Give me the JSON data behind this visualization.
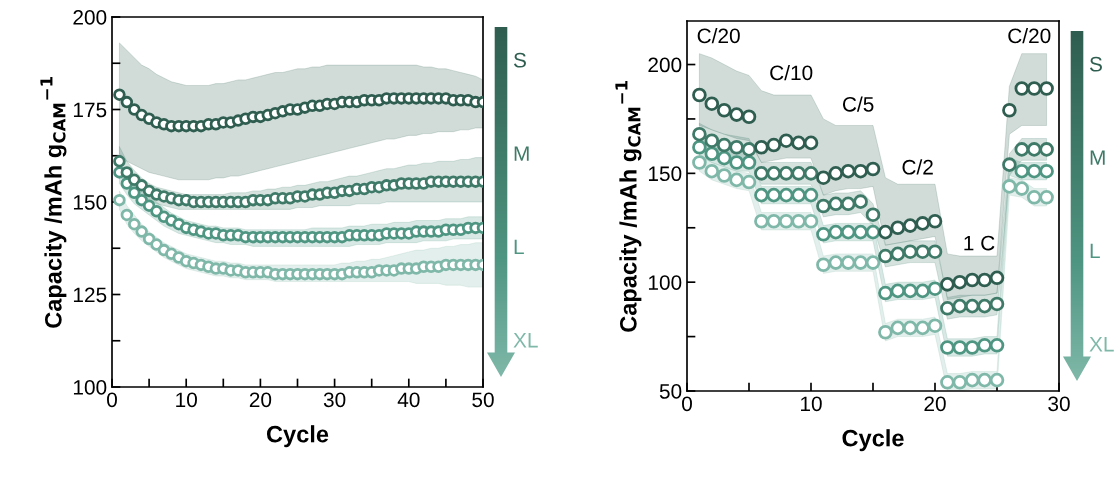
{
  "chart_data": [
    {
      "type": "scatter",
      "xlabel": "Cycle",
      "ylabel": "Capacity /mAh g$_{CAM}$$^{−1}$",
      "marker": "circle",
      "legend": "right",
      "grid": false,
      "x": [
        1,
        2,
        3,
        4,
        5,
        6,
        7,
        8,
        9,
        10,
        11,
        12,
        13,
        14,
        15,
        16,
        17,
        18,
        19,
        20,
        21,
        22,
        23,
        24,
        25,
        26,
        27,
        28,
        29,
        30,
        31,
        32,
        33,
        34,
        35,
        36,
        37,
        38,
        39,
        40,
        41,
        42,
        43,
        44,
        45,
        46,
        47,
        48,
        49,
        50
      ],
      "xlim": [
        0,
        50
      ],
      "xticks": [
        0,
        {
          "value": 5,
          "label": null
        },
        10,
        {
          "value": 15,
          "label": null
        },
        20,
        {
          "value": 25,
          "label": null
        },
        30,
        {
          "value": 35,
          "label": null
        },
        40,
        {
          "value": 45,
          "label": null
        },
        50
      ],
      "ylim": [
        100,
        200
      ],
      "yticks": [
        100,
        {
          "value": 112.5,
          "label": null
        },
        125,
        {
          "value": 137.5,
          "label": null
        },
        150,
        {
          "value": 162.5,
          "label": null
        },
        175,
        {
          "value": 187.5,
          "label": null
        },
        200
      ],
      "series": [
        {
          "name": "S",
          "color": "#2f5e50",
          "values": [
            179,
            177,
            175,
            173.5,
            172.5,
            171.5,
            171,
            170.5,
            170.5,
            170.5,
            170.5,
            170.5,
            171,
            171,
            171.5,
            171.5,
            172,
            172.5,
            173,
            173,
            173.5,
            174,
            174.5,
            175,
            175,
            175.5,
            176,
            176,
            176.5,
            176.5,
            177,
            177,
            177,
            177.5,
            177.5,
            177.5,
            178,
            178,
            178,
            178,
            178,
            178,
            178,
            178,
            178,
            177.5,
            177.5,
            177.5,
            177,
            177
          ],
          "upper": [
            193,
            191,
            189,
            187,
            186,
            184.5,
            183.5,
            182.5,
            182,
            181.5,
            181.5,
            181.5,
            181.5,
            182,
            182,
            182.5,
            183,
            183,
            183.5,
            184,
            184.5,
            185,
            185,
            185.5,
            186,
            186,
            186.5,
            186.5,
            187,
            187,
            187,
            187,
            187,
            187,
            187,
            187,
            187,
            187,
            187,
            187,
            187,
            186.5,
            186.5,
            186,
            186,
            185.5,
            185,
            184.5,
            184,
            183
          ],
          "lower": [
            163,
            161,
            160,
            159,
            158,
            157.5,
            157,
            156.5,
            156,
            156,
            156,
            156,
            156,
            156.5,
            156.5,
            157,
            157,
            157.5,
            158,
            158.5,
            159,
            159.5,
            160,
            160.5,
            161,
            161.5,
            162,
            162.5,
            163,
            163.5,
            164,
            164.5,
            165,
            165.5,
            166,
            166.5,
            167,
            167,
            167.5,
            168,
            168,
            168.5,
            168.5,
            169,
            169,
            169,
            169.5,
            169.5,
            170,
            170
          ]
        },
        {
          "name": "M",
          "color": "#3f7a68",
          "values": [
            161,
            158,
            156,
            154.5,
            153,
            152,
            151.5,
            151,
            150.5,
            150.5,
            150,
            150,
            150,
            150,
            150,
            150,
            150,
            150,
            150.5,
            150.5,
            150.5,
            151,
            151,
            151,
            151.5,
            151.5,
            152,
            152,
            152.5,
            152.5,
            153,
            153,
            153.5,
            153.5,
            154,
            154,
            154.5,
            154.5,
            155,
            155,
            155,
            155,
            155.5,
            155.5,
            155.5,
            155.5,
            155.5,
            155.5,
            155.5,
            155.5
          ],
          "upper": [
            165,
            161,
            158.5,
            156.5,
            155,
            154,
            153.5,
            153,
            152.5,
            152,
            152,
            152,
            152,
            152,
            152,
            152.5,
            152.5,
            152.5,
            153,
            153,
            153.5,
            153.5,
            154,
            154,
            154.5,
            154.5,
            155,
            155.5,
            155.5,
            156,
            156.5,
            157,
            157,
            157.5,
            158,
            158.5,
            159,
            159,
            159.5,
            160,
            160,
            160.5,
            160.5,
            161,
            161,
            161,
            161.5,
            161.5,
            162,
            162
          ],
          "lower": [
            157,
            155,
            153.5,
            152,
            150.5,
            149.5,
            149,
            148.5,
            148,
            148,
            148,
            148,
            148,
            148,
            148,
            148,
            148,
            148,
            148,
            148,
            148,
            148,
            148,
            148,
            148.5,
            148.5,
            148.5,
            149,
            149,
            149,
            149,
            149,
            149.5,
            149.5,
            149.5,
            149.5,
            150,
            150,
            150,
            150,
            150,
            150,
            150,
            150,
            150,
            150,
            150,
            150,
            150,
            150
          ]
        },
        {
          "name": "L",
          "color": "#4f9682",
          "values": [
            158,
            155,
            152.5,
            150.5,
            149,
            147.5,
            146,
            145,
            144,
            143,
            142.5,
            142,
            141.5,
            141.5,
            141,
            141,
            141,
            140.5,
            140.5,
            140.5,
            140.5,
            140.5,
            140.5,
            140.5,
            140.5,
            140.5,
            140.5,
            140.5,
            140.5,
            140.5,
            140.5,
            141,
            141,
            141,
            141,
            141,
            141.5,
            141.5,
            141.5,
            141.5,
            142,
            142,
            142,
            142,
            142.5,
            142.5,
            142.5,
            143,
            143,
            143
          ],
          "upper": [
            161,
            158,
            155.5,
            153,
            151.5,
            150,
            148.5,
            147,
            146,
            145,
            144.5,
            144,
            143.5,
            143.5,
            143,
            143,
            143,
            142.5,
            142.5,
            142.5,
            142.5,
            142.5,
            142.5,
            142.5,
            142.5,
            142.5,
            143,
            143,
            143,
            143,
            143,
            143.5,
            143.5,
            143.5,
            144,
            144,
            144,
            144.5,
            144.5,
            144.5,
            145,
            145,
            145,
            145,
            145.5,
            145.5,
            145.5,
            146,
            146,
            146
          ],
          "lower": [
            155,
            152,
            149.5,
            148,
            146.5,
            145,
            143.5,
            142.5,
            141.5,
            141,
            140.5,
            140,
            139.5,
            139,
            139,
            138.5,
            138.5,
            138.5,
            138,
            138,
            138,
            138,
            138,
            138,
            138,
            138,
            138,
            138,
            138,
            138,
            138,
            138,
            138.5,
            138.5,
            138.5,
            138.5,
            139,
            139,
            139,
            139,
            139,
            139.5,
            139.5,
            139.5,
            139.5,
            140,
            140,
            140,
            140,
            140
          ]
        },
        {
          "name": "XL",
          "color": "#7fb8a8",
          "values": [
            150.5,
            146.5,
            144,
            142,
            140,
            138.5,
            137,
            136,
            135,
            134,
            133.5,
            133,
            132.5,
            132,
            132,
            131.5,
            131.5,
            131,
            131,
            131,
            131,
            130.5,
            130.5,
            130.5,
            130.5,
            130.5,
            130.5,
            130.5,
            130.5,
            130.5,
            130.5,
            131,
            131,
            131,
            131,
            131.5,
            131.5,
            131.5,
            132,
            132,
            132,
            132.5,
            132.5,
            132.5,
            133,
            133,
            133,
            133,
            133,
            133
          ],
          "upper": [
            153,
            149,
            146.5,
            144,
            142,
            140.5,
            139,
            138,
            137,
            136,
            135.5,
            135,
            134.5,
            134,
            134,
            133.5,
            133.5,
            133,
            133,
            133,
            133,
            133,
            133,
            133,
            133,
            133,
            133,
            133,
            133,
            133,
            133.5,
            133.5,
            134,
            134,
            134.5,
            134.5,
            135,
            135.5,
            136,
            136.5,
            137,
            137,
            137.5,
            137.5,
            138,
            138,
            138.5,
            138.5,
            139,
            139
          ],
          "lower": [
            148,
            144,
            141.5,
            139.5,
            138,
            136.5,
            135,
            134,
            133,
            132,
            131.5,
            131,
            130.5,
            130,
            130,
            129.5,
            129.5,
            129,
            129,
            129,
            129,
            128.5,
            128.5,
            128.5,
            128.5,
            128.5,
            128.5,
            128.5,
            128.5,
            128.5,
            128.5,
            128.5,
            128.5,
            128.5,
            128.5,
            128.5,
            128.5,
            128.5,
            128.5,
            128.5,
            128,
            128,
            128,
            128,
            127.5,
            127.5,
            127.5,
            127,
            127,
            127
          ]
        }
      ]
    },
    {
      "type": "scatter",
      "xlabel": "Cycle",
      "ylabel": "Capacity /mAh g$_{CAM}$$^{−1}$",
      "marker": "circle",
      "legend": "right",
      "grid": false,
      "x": [
        1,
        2,
        3,
        4,
        5,
        6,
        7,
        8,
        9,
        10,
        11,
        12,
        13,
        14,
        15,
        16,
        17,
        18,
        19,
        20,
        21,
        22,
        23,
        24,
        25,
        26,
        27,
        28,
        29
      ],
      "xlim": [
        0,
        30
      ],
      "xticks": [
        0,
        {
          "value": 5,
          "label": null
        },
        10,
        {
          "value": 15,
          "label": null
        },
        20,
        {
          "value": 25,
          "label": null
        },
        30
      ],
      "ylim": [
        50,
        220
      ],
      "yticks": [
        50,
        {
          "value": 75,
          "label": null
        },
        100,
        {
          "value": 125,
          "label": null
        },
        150,
        {
          "value": 175,
          "label": null
        },
        200
      ],
      "annotations": [
        "C/20",
        "C/10",
        "C/5",
        "C/2",
        "1 C",
        "C/20"
      ],
      "series": [
        {
          "name": "S",
          "color": "#2f5e50",
          "values": [
            186,
            182,
            179,
            177,
            176,
            162,
            163,
            165,
            164,
            164,
            148,
            150,
            151,
            151,
            152,
            123,
            125,
            126,
            127,
            128,
            99,
            100,
            101,
            101,
            102,
            179,
            189,
            189,
            189
          ],
          "upper": [
            205,
            203,
            200,
            197,
            195,
            188,
            186,
            186,
            186,
            186,
            175,
            172,
            172,
            172,
            172,
            148,
            145,
            145,
            145,
            145,
            113,
            112,
            112,
            112,
            112,
            190,
            205,
            205,
            205
          ],
          "lower": [
            172,
            170,
            168,
            166,
            165,
            155,
            156,
            157,
            157,
            157,
            140,
            142,
            143,
            143,
            144,
            117,
            118,
            119,
            120,
            121,
            92,
            93,
            94,
            94,
            95,
            168,
            172,
            172,
            172
          ]
        },
        {
          "name": "M",
          "color": "#3f7a68",
          "values": [
            168,
            165,
            163,
            162,
            161,
            150,
            150,
            150,
            150,
            150,
            135,
            136,
            136,
            137,
            131,
            112,
            113,
            114,
            114,
            114,
            88,
            89,
            89,
            89,
            90,
            154,
            161,
            161,
            161
          ],
          "upper": [
            173,
            170,
            168,
            167,
            166,
            155,
            155,
            155,
            155,
            155,
            140,
            141,
            141,
            142,
            136,
            117,
            118,
            119,
            119,
            119,
            93,
            94,
            94,
            94,
            95,
            159,
            166,
            166,
            166
          ],
          "lower": [
            163,
            160,
            158,
            157,
            156,
            145,
            145,
            145,
            145,
            145,
            130,
            131,
            131,
            132,
            126,
            107,
            108,
            109,
            109,
            109,
            83,
            84,
            84,
            84,
            85,
            149,
            156,
            156,
            156
          ]
        },
        {
          "name": "L",
          "color": "#4f9682",
          "values": [
            162,
            159,
            157,
            155,
            155,
            140,
            140,
            140,
            140,
            140,
            122,
            123,
            123,
            123,
            123,
            95,
            96,
            96,
            96,
            97,
            70,
            70,
            70,
            71,
            71,
            null,
            151,
            151,
            151
          ],
          "upper": [
            166,
            163,
            161,
            159,
            159,
            144,
            144,
            144,
            144,
            144,
            126,
            127,
            127,
            127,
            127,
            99,
            100,
            100,
            100,
            101,
            74,
            74,
            74,
            75,
            75,
            157,
            155,
            155,
            155
          ],
          "lower": [
            158,
            155,
            153,
            151,
            151,
            136,
            136,
            136,
            136,
            136,
            118,
            119,
            119,
            119,
            119,
            91,
            92,
            92,
            92,
            93,
            66,
            66,
            66,
            67,
            67,
            149,
            147,
            147,
            147
          ]
        },
        {
          "name": "XL",
          "color": "#7fb8a8",
          "values": [
            155,
            151,
            149,
            147,
            146,
            128,
            128,
            128,
            128,
            128,
            108,
            109,
            109,
            109,
            109,
            77,
            79,
            79,
            79,
            80,
            54,
            54,
            55,
            55,
            55,
            144,
            143,
            139,
            139
          ],
          "upper": [
            159,
            155,
            153,
            151,
            150,
            132,
            132,
            132,
            132,
            132,
            112,
            113,
            113,
            113,
            113,
            81,
            83,
            83,
            83,
            84,
            58,
            58,
            59,
            59,
            59,
            148,
            147,
            143,
            143
          ],
          "lower": [
            151,
            147,
            145,
            143,
            142,
            124,
            124,
            124,
            124,
            124,
            104,
            105,
            105,
            105,
            105,
            73,
            75,
            75,
            75,
            76,
            50,
            50,
            51,
            51,
            51,
            140,
            139,
            135,
            135
          ]
        }
      ]
    }
  ]
}
